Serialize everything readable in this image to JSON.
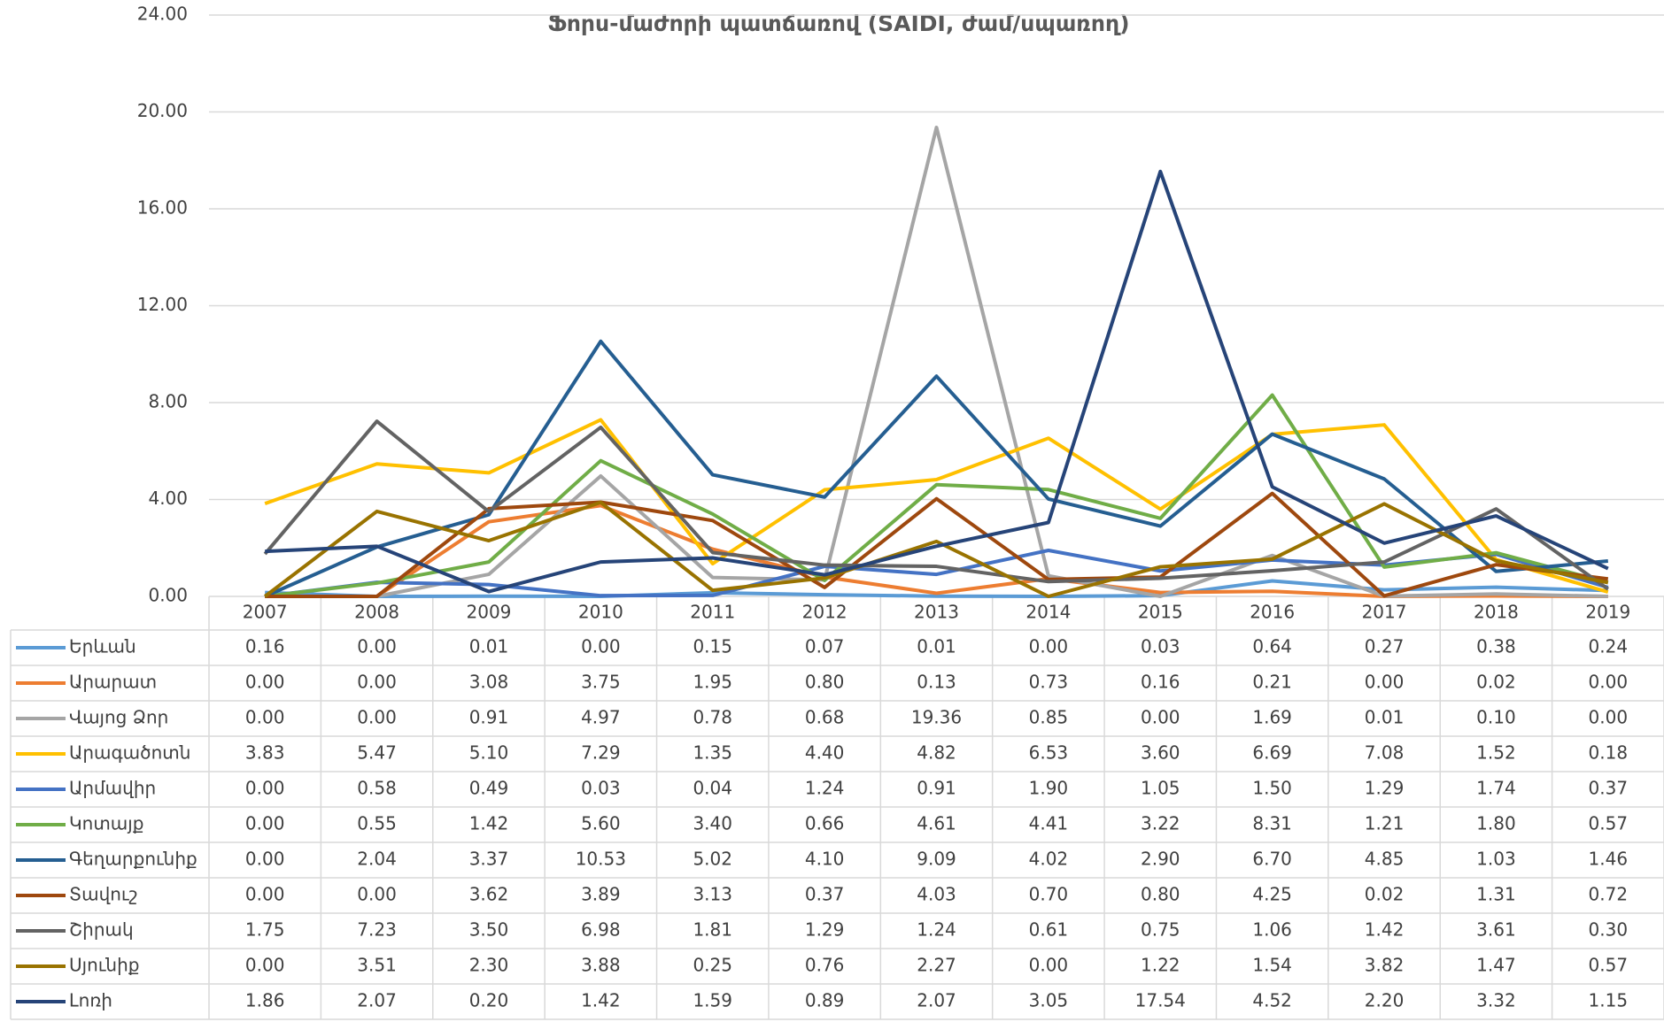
{
  "chart_data": {
    "type": "line",
    "title": "Ֆորս-մաժորի պատճառով (SAIDI, ժամ/սպառող)",
    "categories": [
      "2007",
      "2008",
      "2009",
      "2010",
      "2011",
      "2012",
      "2013",
      "2014",
      "2015",
      "2016",
      "2017",
      "2018",
      "2019"
    ],
    "ylim": [
      0,
      24
    ],
    "yticks": [
      {
        "value": 0,
        "label": "0.00"
      },
      {
        "value": 4,
        "label": "4.00"
      },
      {
        "value": 8,
        "label": "8.00"
      },
      {
        "value": 12,
        "label": "12.00"
      },
      {
        "value": 16,
        "label": "16.00"
      },
      {
        "value": 20,
        "label": "20.00"
      },
      {
        "value": 24,
        "label": "24.00"
      }
    ],
    "grid": true,
    "series": [
      {
        "name": "Երևան",
        "color": "#5b9bd5",
        "values": [
          0.16,
          0,
          0.01,
          0,
          0.15,
          0.07,
          0.01,
          0,
          0.03,
          0.64,
          0.27,
          0.38,
          0.24
        ],
        "value_labels": [
          "0.16",
          "0.00",
          "0.01",
          "0.00",
          "0.15",
          "0.07",
          "0.01",
          "0.00",
          "0.03",
          "0.64",
          "0.27",
          "0.38",
          "0.24"
        ]
      },
      {
        "name": "Արարատ",
        "color": "#ed7d31",
        "values": [
          0,
          0,
          3.08,
          3.75,
          1.95,
          0.8,
          0.13,
          0.73,
          0.16,
          0.21,
          0,
          0.02,
          0
        ],
        "value_labels": [
          "0.00",
          "0.00",
          "3.08",
          "3.75",
          "1.95",
          "0.80",
          "0.13",
          "0.73",
          "0.16",
          "0.21",
          "0.00",
          "0.02",
          "0.00"
        ]
      },
      {
        "name": "Վայոց Ձոր",
        "color": "#a5a5a5",
        "values": [
          0,
          0,
          0.91,
          4.97,
          0.78,
          0.68,
          19.36,
          0.85,
          0,
          1.69,
          0.01,
          0.1,
          0
        ],
        "value_labels": [
          "0.00",
          "0.00",
          "0.91",
          "4.97",
          "0.78",
          "0.68",
          "19.36",
          "0.85",
          "0.00",
          "1.69",
          "0.01",
          "0.10",
          "0.00"
        ]
      },
      {
        "name": "Արագածոտն",
        "color": "#ffc000",
        "values": [
          3.83,
          5.47,
          5.1,
          7.29,
          1.35,
          4.4,
          4.82,
          6.53,
          3.6,
          6.69,
          7.08,
          1.52,
          0.18
        ],
        "value_labels": [
          "3.83",
          "5.47",
          "5.10",
          "7.29",
          "1.35",
          "4.40",
          "4.82",
          "6.53",
          "3.60",
          "6.69",
          "7.08",
          "1.52",
          "0.18"
        ]
      },
      {
        "name": "Արմավիր",
        "color": "#4472c4",
        "values": [
          0,
          0.58,
          0.49,
          0.03,
          0.04,
          1.24,
          0.91,
          1.9,
          1.05,
          1.5,
          1.29,
          1.74,
          0.37
        ],
        "value_labels": [
          "0.00",
          "0.58",
          "0.49",
          "0.03",
          "0.04",
          "1.24",
          "0.91",
          "1.90",
          "1.05",
          "1.50",
          "1.29",
          "1.74",
          "0.37"
        ]
      },
      {
        "name": "Կոտայք",
        "color": "#70ad47",
        "values": [
          0,
          0.55,
          1.42,
          5.6,
          3.4,
          0.66,
          4.61,
          4.41,
          3.22,
          8.31,
          1.21,
          1.8,
          0.57
        ],
        "value_labels": [
          "0.00",
          "0.55",
          "1.42",
          "5.60",
          "3.40",
          "0.66",
          "4.61",
          "4.41",
          "3.22",
          "8.31",
          "1.21",
          "1.80",
          "0.57"
        ]
      },
      {
        "name": "Գեղարքունիք",
        "color": "#255e91",
        "values": [
          0,
          2.04,
          3.37,
          10.53,
          5.02,
          4.1,
          9.09,
          4.02,
          2.9,
          6.7,
          4.85,
          1.03,
          1.46
        ],
        "value_labels": [
          "0.00",
          "2.04",
          "3.37",
          "10.53",
          "5.02",
          "4.10",
          "9.09",
          "4.02",
          "2.90",
          "6.70",
          "4.85",
          "1.03",
          "1.46"
        ]
      },
      {
        "name": "Տավուշ",
        "color": "#9e480e",
        "values": [
          0,
          0,
          3.62,
          3.89,
          3.13,
          0.37,
          4.03,
          0.7,
          0.8,
          4.25,
          0.02,
          1.31,
          0.72
        ],
        "value_labels": [
          "0.00",
          "0.00",
          "3.62",
          "3.89",
          "3.13",
          "0.37",
          "4.03",
          "0.70",
          "0.80",
          "4.25",
          "0.02",
          "1.31",
          "0.72"
        ]
      },
      {
        "name": "Շիրակ",
        "color": "#636363",
        "values": [
          1.75,
          7.23,
          3.5,
          6.98,
          1.81,
          1.29,
          1.24,
          0.61,
          0.75,
          1.06,
          1.42,
          3.61,
          0.3
        ],
        "value_labels": [
          "1.75",
          "7.23",
          "3.50",
          "6.98",
          "1.81",
          "1.29",
          "1.24",
          "0.61",
          "0.75",
          "1.06",
          "1.42",
          "3.61",
          "0.30"
        ]
      },
      {
        "name": "Սյունիք",
        "color": "#997300",
        "values": [
          0,
          3.51,
          2.3,
          3.88,
          0.25,
          0.76,
          2.27,
          0,
          1.22,
          1.54,
          3.82,
          1.47,
          0.57
        ],
        "value_labels": [
          "0.00",
          "3.51",
          "2.30",
          "3.88",
          "0.25",
          "0.76",
          "2.27",
          "0.00",
          "1.22",
          "1.54",
          "3.82",
          "1.47",
          "0.57"
        ]
      },
      {
        "name": "Լոռի",
        "color": "#264478",
        "values": [
          1.86,
          2.07,
          0.2,
          1.42,
          1.59,
          0.89,
          2.07,
          3.05,
          17.54,
          4.52,
          2.2,
          3.32,
          1.15
        ],
        "value_labels": [
          "1.86",
          "2.07",
          "0.20",
          "1.42",
          "1.59",
          "0.89",
          "2.07",
          "3.05",
          "17.54",
          "4.52",
          "2.20",
          "3.32",
          "1.15"
        ]
      }
    ]
  }
}
